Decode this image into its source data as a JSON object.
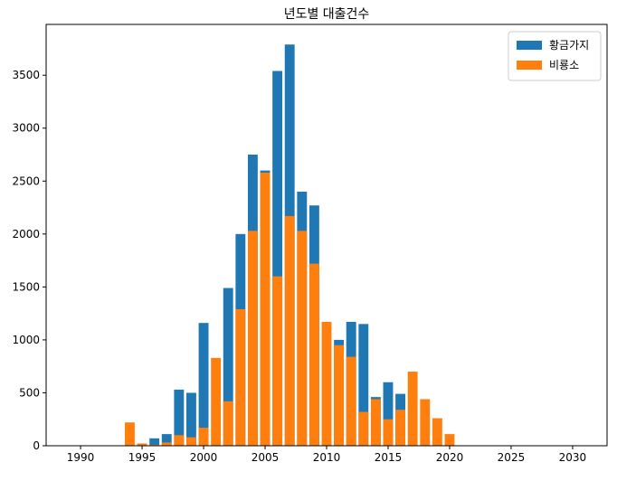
{
  "chart_data": {
    "type": "bar",
    "title": "년도별 대출건수",
    "xlabel": "",
    "ylabel": "",
    "xlim": [
      1987.2,
      1932.8
    ],
    "ylim": [
      0,
      3980
    ],
    "x_ticks": [
      1990,
      1995,
      2000,
      2005,
      2010,
      2015,
      2020,
      2025,
      2030
    ],
    "y_ticks": [
      0,
      500,
      1000,
      1500,
      2000,
      2500,
      3000,
      3500
    ],
    "x_tick_labels": [
      "1990",
      "1995",
      "2000",
      "2005",
      "2010",
      "2015",
      "2020",
      "2025",
      "2030"
    ],
    "y_tick_labels": [
      "0",
      "500",
      "1000",
      "1500",
      "2000",
      "2500",
      "3000",
      "3500"
    ],
    "legend_position": "top-right",
    "overlay": true,
    "series": [
      {
        "name": "황금가지",
        "color": "#1f77b4",
        "x": [
          1995,
          1996,
          1997,
          1998,
          1999,
          2000,
          2002,
          2003,
          2004,
          2005,
          2006,
          2007,
          2008,
          2009,
          2011,
          2012,
          2013,
          2014,
          2015,
          2016
        ],
        "values": [
          20,
          70,
          110,
          530,
          500,
          1160,
          1490,
          2000,
          2750,
          2600,
          3540,
          3790,
          2400,
          2270,
          1000,
          1170,
          1150,
          460,
          600,
          490
        ]
      },
      {
        "name": "비룡소",
        "color": "#ff7f0e",
        "x": [
          1994,
          1995,
          1996,
          1997,
          1998,
          1999,
          2000,
          2001,
          2002,
          2003,
          2004,
          2005,
          2006,
          2007,
          2008,
          2009,
          2010,
          2011,
          2012,
          2013,
          2014,
          2015,
          2016,
          2017,
          2018,
          2019,
          2020
        ],
        "values": [
          220,
          20,
          10,
          30,
          100,
          80,
          170,
          830,
          420,
          1290,
          2030,
          2580,
          1600,
          2170,
          2030,
          1720,
          1170,
          950,
          840,
          320,
          440,
          250,
          340,
          700,
          440,
          260,
          110
        ]
      }
    ]
  }
}
